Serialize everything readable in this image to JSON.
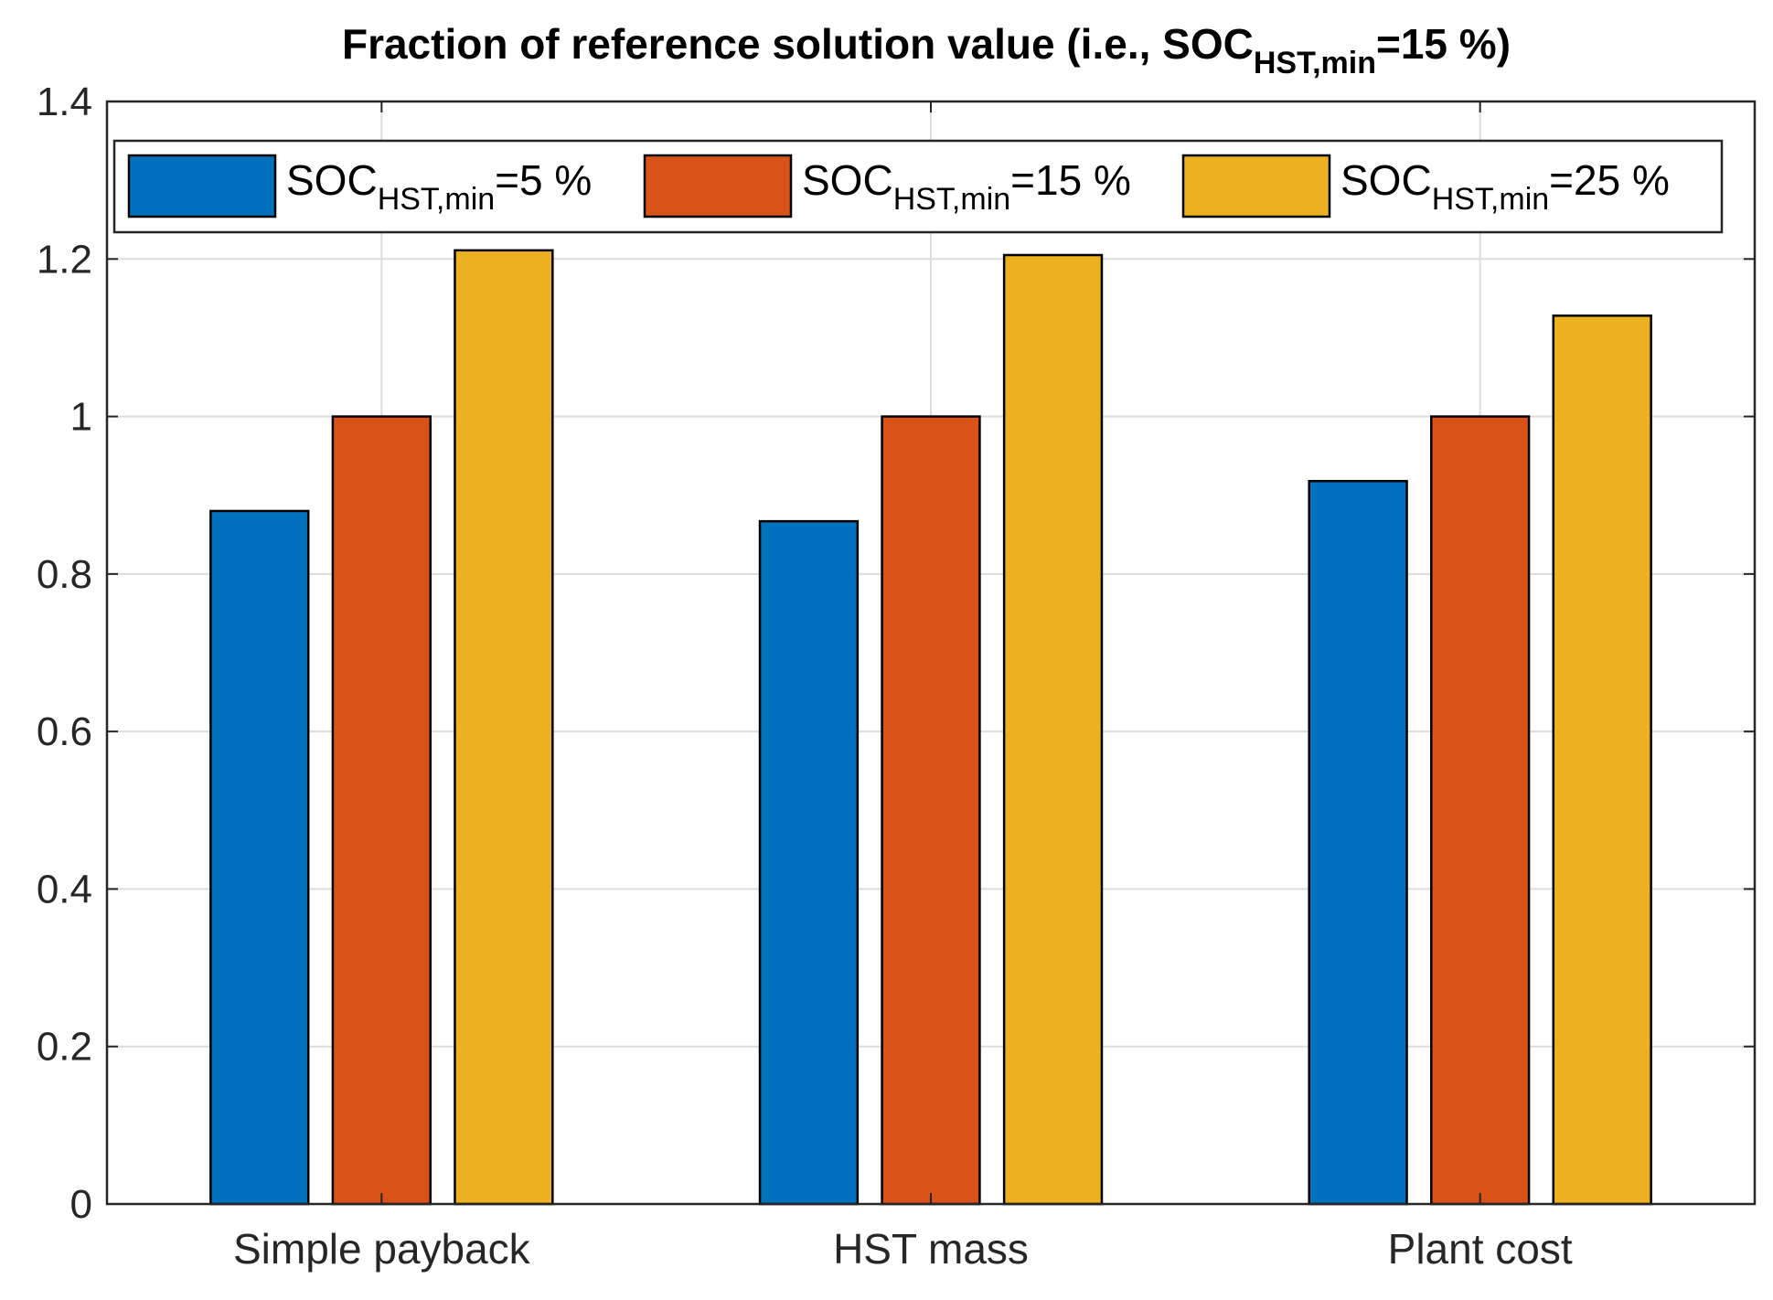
{
  "chart_data": {
    "type": "bar",
    "title": {
      "main": "Fraction of reference solution value (i.e., SOC",
      "subscript": "HST,min",
      "tail": "=15 %)"
    },
    "categories": [
      "Simple payback",
      "HST mass",
      "Plant cost"
    ],
    "series": [
      {
        "name": "SOC_HST,min=5 %",
        "label_main": "SOC",
        "label_sub": "HST,min",
        "label_tail": "=5 %",
        "color": "#0072BD",
        "values": [
          0.88,
          0.867,
          0.918
        ]
      },
      {
        "name": "SOC_HST,min=15 %",
        "label_main": "SOC",
        "label_sub": "HST,min",
        "label_tail": "=15 %",
        "color": "#D95319",
        "values": [
          1.0,
          1.0,
          1.0
        ]
      },
      {
        "name": "SOC_HST,min=25 %",
        "label_main": "SOC",
        "label_sub": "HST,min",
        "label_tail": "=25 %",
        "color": "#EDB120",
        "values": [
          1.211,
          1.205,
          1.128
        ]
      }
    ],
    "ylim": [
      0,
      1.4
    ],
    "yticks": [
      0,
      0.2,
      0.4,
      0.6,
      0.8,
      1,
      1.2,
      1.4
    ],
    "ytick_labels": [
      "0",
      "0.2",
      "0.4",
      "0.6",
      "0.8",
      "1",
      "1.2",
      "1.4"
    ],
    "xlabel": "",
    "ylabel": "",
    "grid": true,
    "legend_position": "top-inside"
  }
}
